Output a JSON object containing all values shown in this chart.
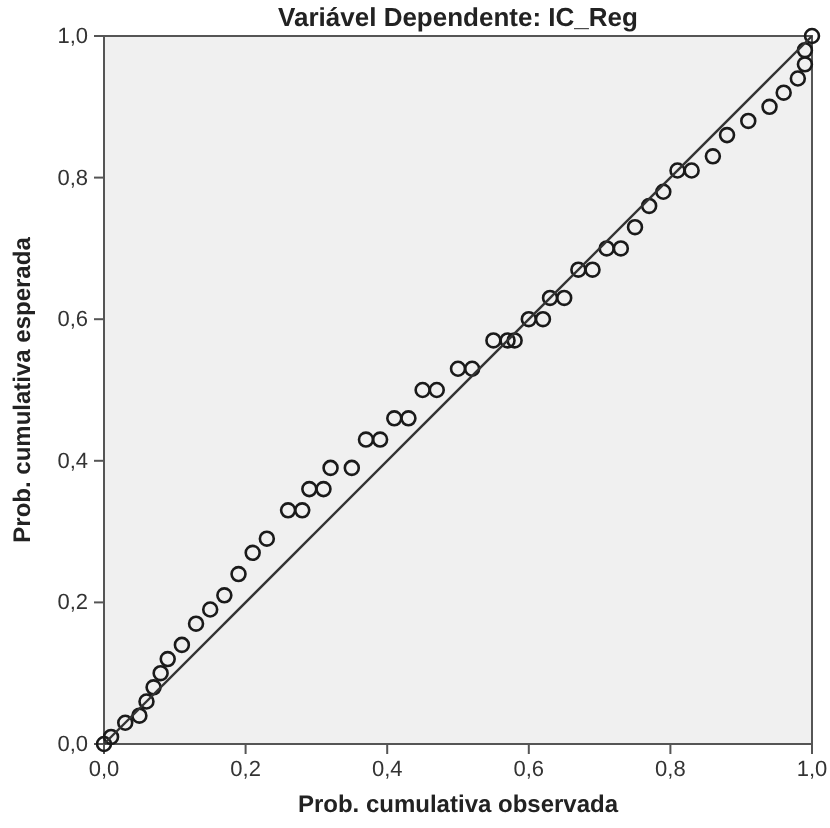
{
  "chart_data": {
    "type": "scatter",
    "title": "Variável Dependente: IC_Reg",
    "xlabel": "Prob. cumulativa observada",
    "ylabel": "Prob. cumulativa esperada",
    "xlim": [
      0,
      1
    ],
    "ylim": [
      0,
      1
    ],
    "xticks": [
      {
        "value": 0,
        "label": "0,0"
      },
      {
        "value": 0.2,
        "label": "0,2"
      },
      {
        "value": 0.4,
        "label": "0,4"
      },
      {
        "value": 0.6,
        "label": "0,6"
      },
      {
        "value": 0.8,
        "label": "0,8"
      },
      {
        "value": 1,
        "label": "1,0"
      }
    ],
    "yticks": [
      {
        "value": 0,
        "label": "0,0"
      },
      {
        "value": 0.2,
        "label": "0,2"
      },
      {
        "value": 0.4,
        "label": "0,4"
      },
      {
        "value": 0.6,
        "label": "0,6"
      },
      {
        "value": 0.8,
        "label": "0,8"
      },
      {
        "value": 1,
        "label": "1,0"
      }
    ],
    "grid": false,
    "marker": "circle",
    "series": [
      {
        "color": "#1a1a1a",
        "x": [
          0,
          0.01,
          0.03,
          0.05,
          0.06,
          0.07,
          0.08,
          0.09,
          0.11,
          0.13,
          0.15,
          0.17,
          0.19,
          0.21,
          0.23,
          0.26,
          0.28,
          0.29,
          0.31,
          0.32,
          0.35,
          0.37,
          0.39,
          0.41,
          0.43,
          0.45,
          0.47,
          0.5,
          0.52,
          0.55,
          0.57,
          0.58,
          0.6,
          0.62,
          0.63,
          0.65,
          0.67,
          0.69,
          0.71,
          0.73,
          0.75,
          0.77,
          0.79,
          0.81,
          0.83,
          0.86,
          0.88,
          0.91,
          0.94,
          0.96,
          0.98,
          0.99,
          0.99,
          1
        ],
        "values": [
          0,
          0.01,
          0.03,
          0.04,
          0.06,
          0.08,
          0.1,
          0.12,
          0.14,
          0.17,
          0.19,
          0.21,
          0.24,
          0.27,
          0.29,
          0.33,
          0.33,
          0.36,
          0.36,
          0.39,
          0.39,
          0.43,
          0.43,
          0.46,
          0.46,
          0.5,
          0.5,
          0.53,
          0.53,
          0.57,
          0.57,
          0.57,
          0.6,
          0.6,
          0.63,
          0.63,
          0.67,
          0.67,
          0.7,
          0.7,
          0.73,
          0.76,
          0.78,
          0.81,
          0.81,
          0.83,
          0.86,
          0.88,
          0.9,
          0.92,
          0.94,
          0.96,
          0.98,
          1
        ]
      },
      {
        "type": "line",
        "marker": "none",
        "color": "#333333",
        "line_style": "solid",
        "x": [
          0,
          1
        ],
        "values": [
          0,
          1
        ]
      }
    ]
  }
}
